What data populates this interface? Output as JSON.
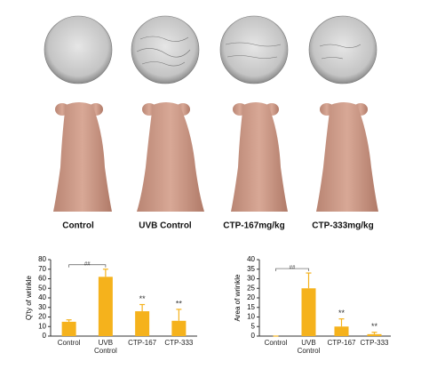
{
  "groups": [
    "Control",
    "UVB Control",
    "CTP-167mg/kg",
    "CTP-333mg/kg"
  ],
  "chart_data": [
    {
      "type": "bar",
      "y_label": "Q'ty of wrinkle",
      "color": "#f5b21c",
      "categories": [
        "Control",
        "UVB Control",
        "CTP-167",
        "CTP-333"
      ],
      "values": [
        15,
        62,
        26,
        16
      ],
      "errors": [
        2,
        8,
        7,
        12
      ],
      "significance": [
        null,
        "##",
        "**",
        "**"
      ],
      "ylim": [
        0,
        80
      ],
      "yticks": [
        0,
        10,
        20,
        30,
        40,
        50,
        60,
        70,
        80
      ]
    },
    {
      "type": "bar",
      "y_label": "Area of wrinkle",
      "color": "#f5b21c",
      "categories": [
        "Control",
        "UVB Control",
        "CTP-167",
        "CTP-333"
      ],
      "values": [
        0,
        25,
        5,
        1
      ],
      "errors": [
        0,
        8,
        4,
        1
      ],
      "significance": [
        null,
        "##",
        "**",
        "**"
      ],
      "ylim": [
        0,
        40
      ],
      "yticks": [
        0,
        5,
        10,
        15,
        20,
        25,
        30,
        35,
        40
      ]
    }
  ]
}
